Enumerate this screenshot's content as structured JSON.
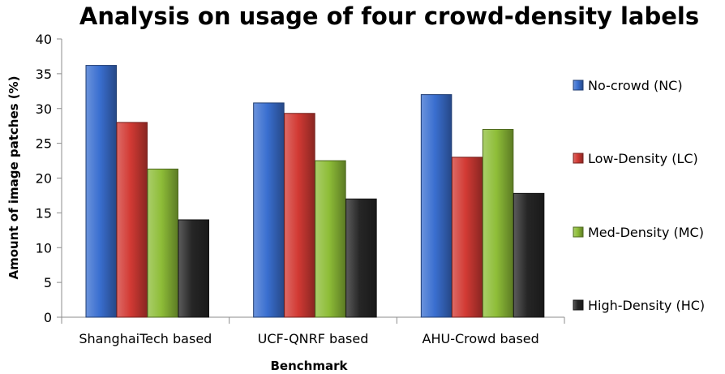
{
  "chart_data": {
    "type": "bar",
    "title": "Analysis on usage of four crowd-density labels",
    "xlabel": "Benchmark",
    "ylabel": "Amount of image patches (%)",
    "ylim": [
      0,
      40
    ],
    "yticks": [
      0,
      5,
      10,
      15,
      20,
      25,
      30,
      35,
      40
    ],
    "categories": [
      "ShanghaiTech based",
      "UCF-QNRF  based",
      "AHU-Crowd  based"
    ],
    "series": [
      {
        "name": "No-crowd (NC)",
        "values": [
          36.2,
          30.8,
          32.0
        ],
        "color": "#3a6fd0"
      },
      {
        "name": "Low-Density (LC)",
        "values": [
          28.0,
          29.3,
          23.0
        ],
        "color": "#d23a34"
      },
      {
        "name": "Med-Density (MC)",
        "values": [
          21.3,
          22.5,
          27.0
        ],
        "color": "#8ebd38"
      },
      {
        "name": "High-Density (HC)",
        "values": [
          14.0,
          17.0,
          17.8
        ],
        "color": "#262626"
      }
    ],
    "grid": false,
    "legend_position": "right"
  }
}
